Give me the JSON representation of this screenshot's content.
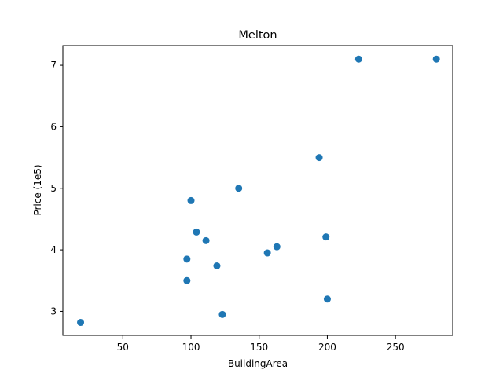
{
  "chart_data": {
    "type": "scatter",
    "title": "Melton",
    "xlabel": "BuildingArea",
    "ylabel": "Price (1e5)",
    "xlim": [
      6,
      292
    ],
    "ylim": [
      2.61,
      7.32
    ],
    "xticks": [
      50,
      100,
      150,
      200,
      250
    ],
    "yticks": [
      3,
      4,
      5,
      6,
      7
    ],
    "xtick_labels": [
      "50",
      "100",
      "150",
      "200",
      "250"
    ],
    "ytick_labels": [
      "3",
      "4",
      "5",
      "6",
      "7"
    ],
    "grid": false,
    "point_color": "#1f77b4",
    "points": [
      {
        "x": 19,
        "y": 2.82
      },
      {
        "x": 97,
        "y": 3.85
      },
      {
        "x": 97,
        "y": 3.5
      },
      {
        "x": 100,
        "y": 4.8
      },
      {
        "x": 104,
        "y": 4.29
      },
      {
        "x": 111,
        "y": 4.15
      },
      {
        "x": 119,
        "y": 3.74
      },
      {
        "x": 123,
        "y": 2.95
      },
      {
        "x": 135,
        "y": 5.0
      },
      {
        "x": 156,
        "y": 3.95
      },
      {
        "x": 163,
        "y": 4.05
      },
      {
        "x": 194,
        "y": 5.5
      },
      {
        "x": 199,
        "y": 4.21
      },
      {
        "x": 200,
        "y": 3.2
      },
      {
        "x": 223,
        "y": 7.1
      },
      {
        "x": 280,
        "y": 7.1
      }
    ]
  }
}
